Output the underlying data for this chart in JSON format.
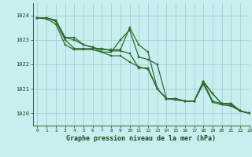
{
  "background_color": "#c8eef0",
  "grid_color": "#a0c8d0",
  "line_color": "#2d6a2d",
  "marker_color": "#2d6a2d",
  "xlabel": "Graphe pression niveau de la mer (hPa)",
  "ylim": [
    1019.5,
    1024.5
  ],
  "xlim": [
    -0.5,
    23
  ],
  "yticks": [
    1020,
    1021,
    1022,
    1023,
    1024
  ],
  "xticks": [
    0,
    1,
    2,
    3,
    4,
    5,
    6,
    7,
    8,
    9,
    10,
    11,
    12,
    13,
    14,
    15,
    16,
    17,
    18,
    19,
    20,
    21,
    22,
    23
  ],
  "series": [
    [
      1023.9,
      1023.9,
      1023.8,
      1023.1,
      1023.1,
      1022.8,
      1022.7,
      1022.6,
      1022.6,
      1022.6,
      1023.5,
      1022.8,
      1022.5,
      1021.0,
      1020.6,
      1020.6,
      1020.5,
      1020.5,
      1021.3,
      1020.8,
      1020.4,
      1020.4,
      1020.1,
      1020.0
    ],
    [
      1023.9,
      1023.9,
      1023.8,
      1023.1,
      1023.0,
      1022.8,
      1022.7,
      1022.5,
      1022.5,
      1023.0,
      1023.4,
      1022.3,
      1022.2,
      1022.0,
      1020.6,
      1020.6,
      1020.5,
      1020.5,
      1021.3,
      1020.8,
      1020.4,
      1020.4,
      1020.1,
      1020.0
    ],
    [
      1023.9,
      1023.9,
      1023.75,
      1023.0,
      1022.65,
      1022.65,
      1022.65,
      1022.65,
      1022.55,
      1022.55,
      1022.45,
      1021.85,
      1021.85,
      1021.0,
      1020.6,
      1020.6,
      1020.5,
      1020.5,
      1021.3,
      1020.5,
      1020.4,
      1020.35,
      1020.1,
      1020.0
    ],
    [
      1023.9,
      1023.85,
      1023.65,
      1022.8,
      1022.6,
      1022.6,
      1022.6,
      1022.5,
      1022.35,
      1022.35,
      1022.1,
      1021.9,
      1021.8,
      1021.0,
      1020.6,
      1020.55,
      1020.5,
      1020.5,
      1021.2,
      1020.45,
      1020.35,
      1020.3,
      1020.1,
      1020.0
    ]
  ]
}
